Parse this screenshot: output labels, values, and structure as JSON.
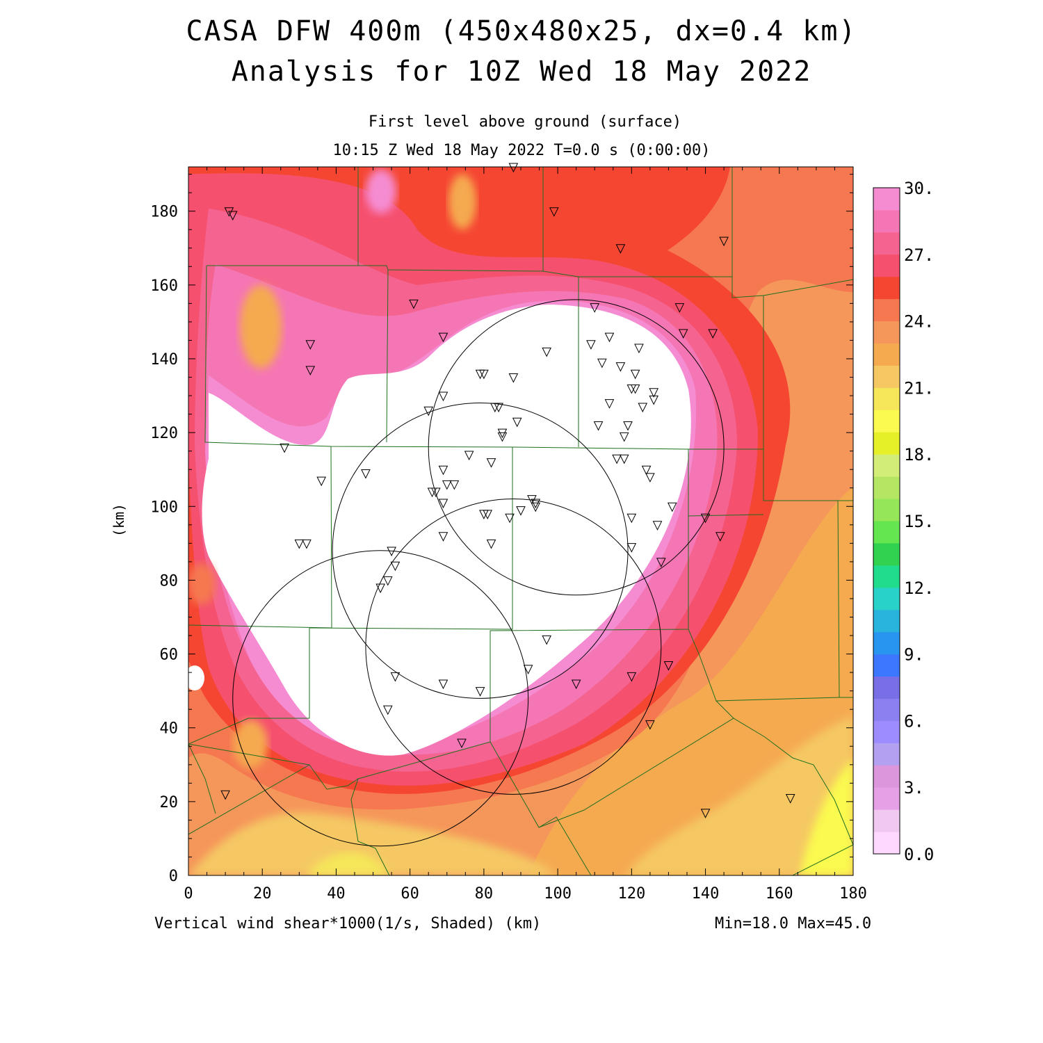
{
  "header": {
    "title_line1": "CASA DFW 400m (450x480x25, dx=0.4 km)",
    "title_line2": "Analysis for 10Z Wed 18 May 2022",
    "level": "First level above ground (surface)",
    "time": "10:15 Z Wed 18 May 2022   T=0.0 s (0:00:00)"
  },
  "footer": {
    "field_label": "Vertical wind shear*1000(1/s, Shaded)  (km)",
    "minmax": "Min=18.0 Max=45.0"
  },
  "chart_data": {
    "type": "heatmap",
    "xlabel": "(km)",
    "ylabel": "(km)",
    "xlim": [
      0,
      180
    ],
    "ylim": [
      0,
      192
    ],
    "x_ticks": [
      "0",
      "20",
      "40",
      "60",
      "80",
      "100",
      "120",
      "140",
      "160",
      "180"
    ],
    "y_ticks": [
      "0",
      "20",
      "40",
      "60",
      "80",
      "100",
      "120",
      "140",
      "160",
      "180"
    ],
    "colorbar": {
      "labels": [
        "0.0",
        "3.",
        "6.",
        "9.",
        "12.",
        "15.",
        "18.",
        "21.",
        "24.",
        "27.",
        "30."
      ],
      "colors_bottom_to_top": [
        "#ffd8ff",
        "#f0c8f0",
        "#e6a0e6",
        "#dc96dc",
        "#b4a0f0",
        "#9c8cff",
        "#8c80f0",
        "#786ee6",
        "#3c78ff",
        "#2896f0",
        "#28b4dc",
        "#28d2c8",
        "#20dc8c",
        "#30d250",
        "#64e650",
        "#96e65a",
        "#b4e664",
        "#d2ee78",
        "#e6f028",
        "#fafa50",
        "#f5e65a",
        "#f5c864",
        "#f5aa50",
        "#f5965a",
        "#f57850",
        "#f54632",
        "#f5506e",
        "#f56490",
        "#f576b4",
        "#f58cd2"
      ]
    },
    "shading_notes": "Shear*1000 shaded; white interior region exceeds the 30. top of scale. Ring of pink/red around interior, orange/yellow lower values toward southeast corner.",
    "radar_rings": [
      {
        "cx": 105,
        "cy": 116,
        "r": 40
      },
      {
        "cx": 79,
        "cy": 88,
        "r": 40
      },
      {
        "cx": 52,
        "cy": 48,
        "r": 40
      },
      {
        "cx": 88,
        "cy": 62,
        "r": 40
      }
    ],
    "station_marks": [
      [
        11,
        180
      ],
      [
        12,
        179
      ],
      [
        33,
        144
      ],
      [
        33,
        137
      ],
      [
        26,
        116
      ],
      [
        36,
        107
      ],
      [
        30,
        90
      ],
      [
        32,
        90
      ],
      [
        10,
        22
      ],
      [
        61,
        155
      ],
      [
        69,
        146
      ],
      [
        88,
        192
      ],
      [
        99,
        180
      ],
      [
        117,
        170
      ],
      [
        145,
        172
      ],
      [
        133,
        154
      ],
      [
        110,
        154
      ],
      [
        134,
        147
      ],
      [
        142,
        147
      ],
      [
        109,
        144
      ],
      [
        114,
        146
      ],
      [
        122,
        143
      ],
      [
        97,
        142
      ],
      [
        112,
        139
      ],
      [
        117,
        138
      ],
      [
        121,
        136
      ],
      [
        79,
        136
      ],
      [
        80,
        136
      ],
      [
        88,
        135
      ],
      [
        120,
        132
      ],
      [
        121,
        132
      ],
      [
        126,
        131
      ],
      [
        69,
        130
      ],
      [
        65,
        126
      ],
      [
        83,
        127
      ],
      [
        84,
        127
      ],
      [
        114,
        128
      ],
      [
        123,
        127
      ],
      [
        126,
        129
      ],
      [
        89,
        123
      ],
      [
        111,
        122
      ],
      [
        119,
        122
      ],
      [
        118,
        119
      ],
      [
        85,
        120
      ],
      [
        85,
        119
      ],
      [
        76,
        114
      ],
      [
        82,
        112
      ],
      [
        116,
        113
      ],
      [
        118,
        113
      ],
      [
        124,
        110
      ],
      [
        125,
        108
      ],
      [
        48,
        109
      ],
      [
        69,
        110
      ],
      [
        66,
        104
      ],
      [
        67,
        104
      ],
      [
        70,
        106
      ],
      [
        72,
        106
      ],
      [
        69,
        101
      ],
      [
        93,
        102
      ],
      [
        94,
        101
      ],
      [
        94,
        100
      ],
      [
        90,
        99
      ],
      [
        80,
        98
      ],
      [
        81,
        98
      ],
      [
        87,
        97
      ],
      [
        131,
        100
      ],
      [
        120,
        97
      ],
      [
        140,
        97
      ],
      [
        127,
        95
      ],
      [
        144,
        92
      ],
      [
        69,
        92
      ],
      [
        82,
        90
      ],
      [
        120,
        89
      ],
      [
        55,
        88
      ],
      [
        56,
        84
      ],
      [
        52,
        78
      ],
      [
        54,
        80
      ],
      [
        128,
        85
      ],
      [
        97,
        64
      ],
      [
        92,
        56
      ],
      [
        130,
        57
      ],
      [
        56,
        54
      ],
      [
        69,
        52
      ],
      [
        79,
        50
      ],
      [
        105,
        52
      ],
      [
        120,
        54
      ],
      [
        54,
        45
      ],
      [
        125,
        41
      ],
      [
        74,
        36
      ],
      [
        140,
        17
      ],
      [
        163,
        21
      ]
    ]
  }
}
